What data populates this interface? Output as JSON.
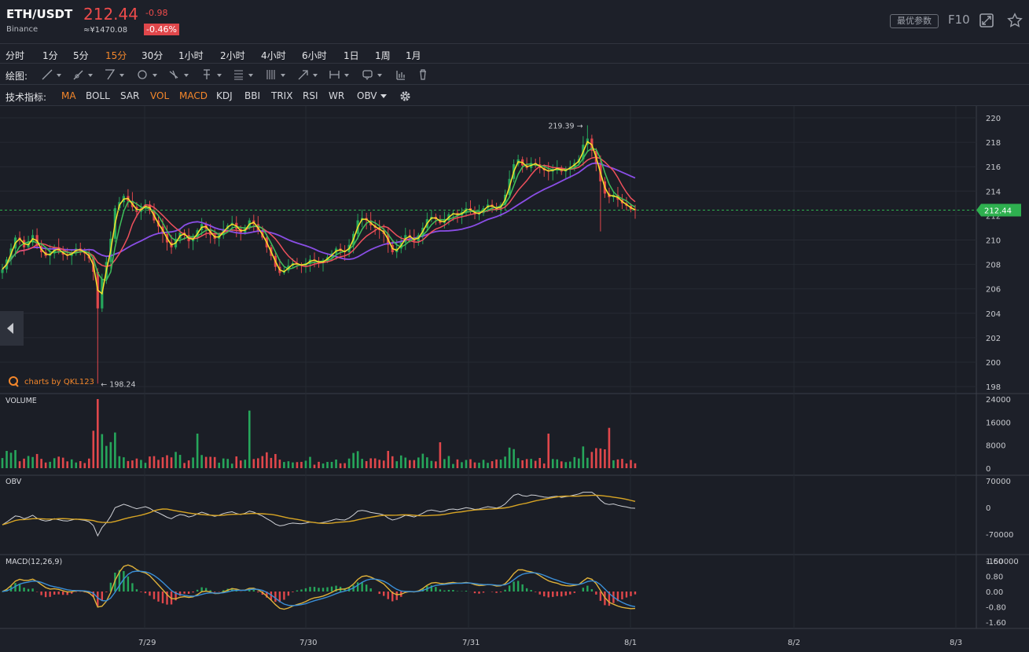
{
  "header": {
    "pair": "ETH/USDT",
    "exchange": "Binance",
    "price": "212.44",
    "change": "-0.98",
    "cny": "≈¥1470.08",
    "change_pct": "-0.46%",
    "best_params": "最优参数",
    "f10": "F10",
    "icons": [
      "fullscreen-icon",
      "star-icon"
    ]
  },
  "timeframes": [
    "分时",
    "1分",
    "5分",
    "15分",
    "30分",
    "1小时",
    "2小时",
    "4小时",
    "6小时",
    "1日",
    "1周",
    "1月"
  ],
  "active_timeframe": "15分",
  "drawing": {
    "label": "绘图:",
    "tools": [
      "trend-line-icon",
      "ray-icon",
      "channel-icon",
      "circle-icon",
      "fib-icon",
      "pitchfork-icon",
      "levels-icon",
      "bars-icon",
      "arrow-icon",
      "range-icon",
      "comment-icon",
      "measure-icon",
      "trash-icon"
    ]
  },
  "indicators": {
    "label": "技术指标:",
    "items": [
      "MA",
      "BOLL",
      "SAR",
      "VOL",
      "MACD",
      "KDJ",
      "BBI",
      "TRIX",
      "RSI",
      "WR",
      "OBV"
    ],
    "active": [
      "MA",
      "VOL",
      "MACD"
    ]
  },
  "watermark": "charts by QKL123",
  "colors": {
    "up": "#26a65b",
    "down": "#e0474b",
    "ma_yellow": "#f7e02a",
    "ma_green": "#3fbf5a",
    "ma_red": "#f0505c",
    "ma_purple": "#8a4ee6",
    "accent": "#f4872b",
    "last_price": "#2eb04f"
  },
  "chart_data": [
    {
      "type": "candlestick",
      "panel": "price",
      "x_ticks": [
        "7/29",
        "7/30",
        "7/31",
        "8/1",
        "8/2",
        "8/3"
      ],
      "y_ticks": [
        220,
        218,
        216,
        214,
        212,
        210,
        208,
        206,
        204,
        202,
        200,
        198
      ],
      "ylim": [
        197.5,
        220.5
      ],
      "last_price_label": "212.44",
      "high_annotation": "219.39",
      "low_annotation": "198.24",
      "close_series": [
        207.6,
        208.4,
        209.3,
        210.2,
        210.0,
        209.4,
        209.8,
        210.4,
        209.5,
        209.0,
        208.7,
        208.9,
        209.4,
        209.1,
        208.8,
        208.7,
        209.0,
        209.3,
        209.1,
        208.9,
        208.5,
        207.4,
        204.4,
        206.8,
        208.2,
        210.1,
        212.6,
        213.1,
        213.6,
        213.2,
        212.7,
        212.3,
        212.6,
        212.9,
        212.4,
        211.6,
        211.1,
        210.5,
        209.8,
        209.4,
        210.1,
        210.6,
        210.4,
        209.9,
        210.2,
        210.8,
        211.3,
        210.9,
        210.4,
        210.1,
        210.4,
        210.9,
        211.2,
        211.4,
        210.9,
        210.6,
        211.0,
        211.6,
        211.3,
        210.7,
        210.2,
        209.4,
        208.7,
        207.8,
        207.3,
        207.5,
        207.9,
        208.1,
        208.0,
        207.9,
        208.1,
        208.4,
        208.3,
        208.1,
        208.3,
        208.6,
        208.9,
        209.3,
        209.1,
        209.0,
        209.6,
        210.5,
        211.6,
        211.8,
        211.6,
        211.2,
        211.0,
        210.8,
        210.5,
        209.6,
        209.0,
        209.3,
        209.8,
        210.4,
        210.2,
        209.9,
        210.4,
        211.0,
        211.7,
        211.9,
        211.7,
        211.4,
        211.6,
        212.1,
        212.2,
        212.0,
        212.3,
        212.6,
        212.4,
        212.1,
        212.2,
        212.6,
        212.9,
        212.7,
        212.5,
        212.9,
        213.7,
        215.0,
        216.2,
        216.6,
        216.1,
        215.9,
        216.3,
        216.2,
        215.9,
        215.7,
        215.6,
        215.8,
        215.9,
        215.6,
        215.8,
        216.0,
        216.3,
        216.6,
        217.8,
        218.3,
        217.3,
        216.2,
        214.8,
        213.8,
        213.5,
        213.7,
        213.3,
        213.0,
        212.8,
        212.5,
        212.44
      ]
    },
    {
      "type": "bar",
      "panel": "volume",
      "title": "VOLUME",
      "y_ticks": [
        24000,
        16000,
        8000,
        0
      ],
      "ylim": [
        0,
        25000
      ]
    },
    {
      "type": "line",
      "panel": "obv",
      "title": "OBV",
      "y_ticks": [
        70000,
        0,
        -70000
      ],
      "ylim": [
        -95000,
        75000
      ]
    },
    {
      "type": "bar",
      "panel": "macd",
      "title": "MACD(12,26,9)",
      "y_ticks": [
        "1.60",
        "0.80",
        "0.00",
        "-0.80",
        "-1.60"
      ],
      "y_tick_extra": "-150000",
      "ylim": [
        -1.8,
        1.75
      ]
    }
  ]
}
